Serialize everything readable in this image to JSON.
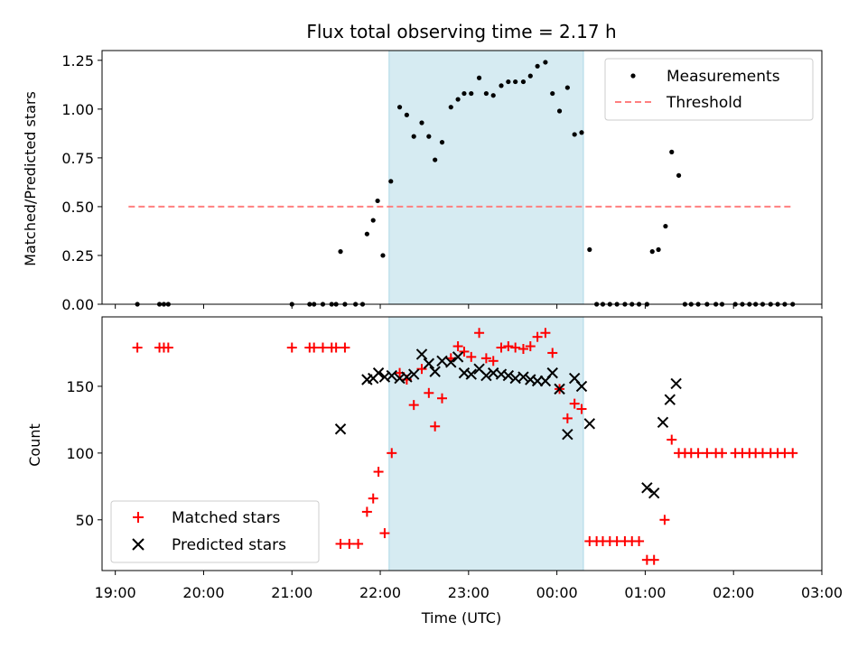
{
  "chart_data": [
    {
      "type": "scatter",
      "title": "Flux total observing time = 2.17 h",
      "ylabel": "Matched/Predicted stars",
      "ylim": [
        0,
        1.3
      ],
      "yticks": [
        "0.00",
        "0.25",
        "0.50",
        "0.75",
        "1.00",
        "1.25"
      ],
      "ytick_values": [
        0,
        0.25,
        0.5,
        0.75,
        1.0,
        1.25
      ],
      "highlight_span": {
        "x_start": 22.1,
        "x_end": 24.3,
        "color": "#add8e6"
      },
      "legend": {
        "position": "upper-right",
        "entries": [
          "Measurements",
          "Threshold"
        ]
      },
      "series": [
        {
          "name": "Measurements",
          "marker": "dot",
          "color": "#000000",
          "points": [
            [
              19.25,
              0
            ],
            [
              19.5,
              0
            ],
            [
              19.55,
              0
            ],
            [
              19.6,
              0
            ],
            [
              21.0,
              0
            ],
            [
              21.2,
              0
            ],
            [
              21.25,
              0
            ],
            [
              21.35,
              0
            ],
            [
              21.45,
              0
            ],
            [
              21.5,
              0
            ],
            [
              21.6,
              0
            ],
            [
              21.55,
              0.27
            ],
            [
              21.72,
              0
            ],
            [
              21.8,
              0
            ],
            [
              21.85,
              0.36
            ],
            [
              21.92,
              0.43
            ],
            [
              21.97,
              0.53
            ],
            [
              22.03,
              0.25
            ],
            [
              22.12,
              0.63
            ],
            [
              22.22,
              1.01
            ],
            [
              22.3,
              0.97
            ],
            [
              22.38,
              0.86
            ],
            [
              22.47,
              0.93
            ],
            [
              22.55,
              0.86
            ],
            [
              22.62,
              0.74
            ],
            [
              22.7,
              0.83
            ],
            [
              22.8,
              1.01
            ],
            [
              22.88,
              1.05
            ],
            [
              22.95,
              1.08
            ],
            [
              23.03,
              1.08
            ],
            [
              23.12,
              1.16
            ],
            [
              23.2,
              1.08
            ],
            [
              23.28,
              1.07
            ],
            [
              23.37,
              1.12
            ],
            [
              23.45,
              1.14
            ],
            [
              23.53,
              1.14
            ],
            [
              23.62,
              1.14
            ],
            [
              23.7,
              1.17
            ],
            [
              23.78,
              1.22
            ],
            [
              23.87,
              1.24
            ],
            [
              23.95,
              1.08
            ],
            [
              24.03,
              0.99
            ],
            [
              24.12,
              1.11
            ],
            [
              24.2,
              0.87
            ],
            [
              24.28,
              0.88
            ],
            [
              24.37,
              0.28
            ],
            [
              24.45,
              0
            ],
            [
              24.52,
              0
            ],
            [
              24.6,
              0
            ],
            [
              24.68,
              0
            ],
            [
              24.77,
              0
            ],
            [
              24.85,
              0
            ],
            [
              24.93,
              0
            ],
            [
              25.02,
              0
            ],
            [
              25.08,
              0.27
            ],
            [
              25.15,
              0.28
            ],
            [
              25.23,
              0.4
            ],
            [
              25.3,
              0.78
            ],
            [
              25.38,
              0.66
            ],
            [
              25.45,
              0
            ],
            [
              25.52,
              0
            ],
            [
              25.6,
              0
            ],
            [
              25.7,
              0
            ],
            [
              25.8,
              0
            ],
            [
              25.87,
              0
            ],
            [
              26.02,
              0
            ],
            [
              26.1,
              0
            ],
            [
              26.18,
              0
            ],
            [
              26.25,
              0
            ],
            [
              26.33,
              0
            ],
            [
              26.42,
              0
            ],
            [
              26.5,
              0
            ],
            [
              26.58,
              0
            ],
            [
              26.67,
              0
            ]
          ]
        },
        {
          "name": "Threshold",
          "marker": "dashed-line",
          "color": "#ff7f7f",
          "points": [
            [
              19.15,
              0.5
            ],
            [
              26.65,
              0.5
            ]
          ]
        }
      ]
    },
    {
      "type": "scatter",
      "xlabel": "Time (UTC)",
      "ylabel": "Count",
      "ylim": [
        12,
        202
      ],
      "yticks": [
        "50",
        "100",
        "150"
      ],
      "ytick_values": [
        50,
        100,
        150
      ],
      "xlim": [
        18.85,
        27.0
      ],
      "xticks": [
        "19:00",
        "20:00",
        "21:00",
        "22:00",
        "23:00",
        "00:00",
        "01:00",
        "02:00",
        "03:00"
      ],
      "xtick_values": [
        19,
        20,
        21,
        22,
        23,
        24,
        25,
        26,
        27
      ],
      "highlight_span": {
        "x_start": 22.1,
        "x_end": 24.3,
        "color": "#add8e6"
      },
      "legend": {
        "position": "lower-left",
        "entries": [
          "Matched stars",
          "Predicted stars"
        ]
      },
      "series": [
        {
          "name": "Matched stars",
          "marker": "plus",
          "color": "#ff0000",
          "points": [
            [
              19.25,
              179
            ],
            [
              19.5,
              179
            ],
            [
              19.55,
              179
            ],
            [
              19.6,
              179
            ],
            [
              21.0,
              179
            ],
            [
              21.2,
              179
            ],
            [
              21.25,
              179
            ],
            [
              21.35,
              179
            ],
            [
              21.45,
              179
            ],
            [
              21.5,
              179
            ],
            [
              21.6,
              179
            ],
            [
              21.55,
              32
            ],
            [
              21.65,
              32
            ],
            [
              21.75,
              32
            ],
            [
              21.85,
              56
            ],
            [
              21.92,
              66
            ],
            [
              21.98,
              86
            ],
            [
              22.05,
              40
            ],
            [
              22.13,
              100
            ],
            [
              22.22,
              160
            ],
            [
              22.3,
              155
            ],
            [
              22.38,
              136
            ],
            [
              22.47,
              163
            ],
            [
              22.55,
              145
            ],
            [
              22.62,
              120
            ],
            [
              22.7,
              141
            ],
            [
              22.8,
              171
            ],
            [
              22.88,
              180
            ],
            [
              22.95,
              176
            ],
            [
              23.03,
              172
            ],
            [
              23.12,
              190
            ],
            [
              23.2,
              171
            ],
            [
              23.28,
              169
            ],
            [
              23.37,
              179
            ],
            [
              23.45,
              180
            ],
            [
              23.53,
              179
            ],
            [
              23.62,
              178
            ],
            [
              23.7,
              180
            ],
            [
              23.78,
              187
            ],
            [
              23.87,
              190
            ],
            [
              23.95,
              175
            ],
            [
              24.03,
              148
            ],
            [
              24.12,
              126
            ],
            [
              24.2,
              137
            ],
            [
              24.28,
              133
            ],
            [
              24.37,
              34
            ],
            [
              24.45,
              34
            ],
            [
              24.52,
              34
            ],
            [
              24.6,
              34
            ],
            [
              24.68,
              34
            ],
            [
              24.77,
              34
            ],
            [
              24.85,
              34
            ],
            [
              24.93,
              34
            ],
            [
              25.02,
              20
            ],
            [
              25.1,
              20
            ],
            [
              25.22,
              50
            ],
            [
              25.3,
              110
            ],
            [
              25.38,
              100
            ],
            [
              25.45,
              100
            ],
            [
              25.52,
              100
            ],
            [
              25.6,
              100
            ],
            [
              25.7,
              100
            ],
            [
              25.8,
              100
            ],
            [
              25.87,
              100
            ],
            [
              26.02,
              100
            ],
            [
              26.1,
              100
            ],
            [
              26.18,
              100
            ],
            [
              26.25,
              100
            ],
            [
              26.33,
              100
            ],
            [
              26.42,
              100
            ],
            [
              26.5,
              100
            ],
            [
              26.58,
              100
            ],
            [
              26.67,
              100
            ]
          ]
        },
        {
          "name": "Predicted stars",
          "marker": "x",
          "color": "#000000",
          "points": [
            [
              21.55,
              118
            ],
            [
              21.85,
              155
            ],
            [
              21.92,
              156
            ],
            [
              21.98,
              160
            ],
            [
              22.05,
              157
            ],
            [
              22.13,
              158
            ],
            [
              22.22,
              156
            ],
            [
              22.3,
              157
            ],
            [
              22.38,
              159
            ],
            [
              22.47,
              174
            ],
            [
              22.55,
              167
            ],
            [
              22.62,
              161
            ],
            [
              22.7,
              169
            ],
            [
              22.8,
              168
            ],
            [
              22.88,
              172
            ],
            [
              22.95,
              160
            ],
            [
              23.03,
              159
            ],
            [
              23.12,
              163
            ],
            [
              23.2,
              158
            ],
            [
              23.28,
              160
            ],
            [
              23.37,
              159
            ],
            [
              23.45,
              158
            ],
            [
              23.53,
              156
            ],
            [
              23.62,
              157
            ],
            [
              23.7,
              155
            ],
            [
              23.78,
              154
            ],
            [
              23.87,
              154
            ],
            [
              23.95,
              160
            ],
            [
              24.03,
              148
            ],
            [
              24.12,
              114
            ],
            [
              24.2,
              156
            ],
            [
              24.28,
              150
            ],
            [
              24.37,
              122
            ],
            [
              25.02,
              74
            ],
            [
              25.1,
              70
            ],
            [
              25.2,
              123
            ],
            [
              25.28,
              140
            ],
            [
              25.35,
              152
            ]
          ]
        }
      ]
    }
  ]
}
